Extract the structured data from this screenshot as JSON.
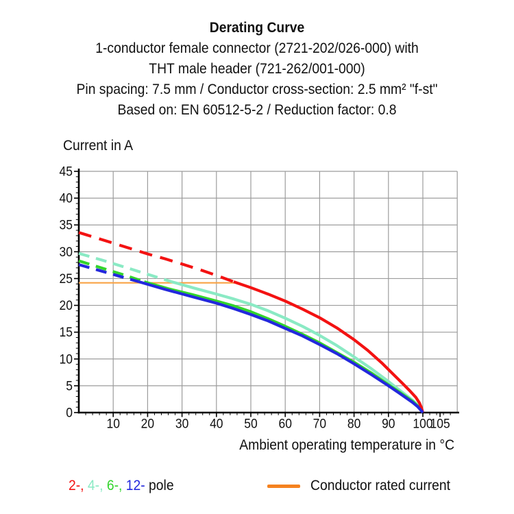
{
  "header": {
    "title": "Derating Curve",
    "lines": [
      "1-conductor female connector (2721-202/026-000) with",
      "THT male header (721-262/001-000)",
      "Pin spacing: 7.5 mm / Conductor cross-section: 2.5 mm² \"f-st\"",
      "Based on: EN 60512-5-2 / Reduction factor: 0.8"
    ]
  },
  "chart_data": {
    "type": "line",
    "title": "Derating Curve",
    "xlabel": "Ambient operating temperature in °C",
    "ylabel": "Current in A",
    "xlim": [
      0,
      110
    ],
    "ylim": [
      0,
      45
    ],
    "x_ticks": [
      10,
      20,
      30,
      40,
      50,
      60,
      70,
      80,
      90,
      100,
      105
    ],
    "x_grid": [
      10,
      20,
      30,
      40,
      50,
      60,
      70,
      80,
      90,
      100,
      110
    ],
    "y_ticks": [
      0,
      5,
      10,
      15,
      20,
      25,
      30,
      35,
      40,
      45
    ],
    "x_minor_step": 2,
    "y_minor_step": 1,
    "grid": true,
    "legend_position": "bottom",
    "grid_color": "#9c9c9c",
    "axis_color": "#000000",
    "rated_current": 24,
    "series": [
      {
        "name": "2-pole",
        "color": "#f31212",
        "width": 4.2,
        "dash": "19 12",
        "dashed": [
          [
            0,
            33.6
          ],
          [
            5,
            32.6
          ],
          [
            10,
            31.6
          ],
          [
            15,
            30.6
          ],
          [
            20,
            29.6
          ],
          [
            25,
            28.7
          ],
          [
            30,
            27.7
          ],
          [
            35,
            26.7
          ],
          [
            40,
            25.6
          ],
          [
            45,
            24.4
          ]
        ],
        "solid": [
          [
            45,
            24.4
          ],
          [
            50,
            23.3
          ],
          [
            55,
            22.1
          ],
          [
            60,
            20.8
          ],
          [
            65,
            19.3
          ],
          [
            70,
            17.7
          ],
          [
            75,
            15.8
          ],
          [
            80,
            13.6
          ],
          [
            84,
            11.6
          ],
          [
            88,
            9.3
          ],
          [
            91,
            7.4
          ],
          [
            94,
            5.5
          ],
          [
            96,
            4.2
          ],
          [
            98,
            2.8
          ],
          [
            99,
            1.8
          ],
          [
            99.6,
            0.9
          ],
          [
            100,
            0
          ]
        ]
      },
      {
        "name": "4-pole",
        "color": "#8aeac4",
        "width": 4.2,
        "dash": "16 10",
        "dashed": [
          [
            0,
            29.7
          ],
          [
            7,
            28.4
          ],
          [
            14,
            27.0
          ],
          [
            21,
            25.6
          ],
          [
            27,
            24.4
          ]
        ],
        "solid": [
          [
            27,
            24.4
          ],
          [
            33,
            23.3
          ],
          [
            40,
            22.1
          ],
          [
            45,
            21.2
          ],
          [
            50,
            20.2
          ],
          [
            55,
            19.0
          ],
          [
            60,
            17.6
          ],
          [
            65,
            16.1
          ],
          [
            70,
            14.4
          ],
          [
            75,
            12.5
          ],
          [
            80,
            10.4
          ],
          [
            85,
            8.2
          ],
          [
            90,
            5.8
          ],
          [
            93,
            4.3
          ],
          [
            95,
            3.3
          ],
          [
            97,
            2.3
          ],
          [
            98.5,
            1.4
          ],
          [
            99.5,
            0.6
          ],
          [
            100,
            0
          ]
        ]
      },
      {
        "name": "6-pole",
        "color": "#33d42d",
        "width": 4.2,
        "dash": "16 10",
        "dashed": [
          [
            0,
            28.3
          ],
          [
            6,
            27.1
          ],
          [
            13,
            25.7
          ],
          [
            19,
            24.4
          ]
        ],
        "solid": [
          [
            19,
            24.4
          ],
          [
            26,
            23.1
          ],
          [
            33,
            22.0
          ],
          [
            40,
            20.8
          ],
          [
            45,
            19.9
          ],
          [
            50,
            18.8
          ],
          [
            55,
            17.5
          ],
          [
            60,
            16.1
          ],
          [
            65,
            14.6
          ],
          [
            70,
            13.0
          ],
          [
            75,
            11.2
          ],
          [
            80,
            9.4
          ],
          [
            85,
            7.4
          ],
          [
            90,
            5.2
          ],
          [
            93,
            3.9
          ],
          [
            95,
            3.0
          ],
          [
            97,
            2.1
          ],
          [
            98.5,
            1.2
          ],
          [
            99.5,
            0.5
          ],
          [
            100,
            0
          ]
        ]
      },
      {
        "name": "12-pole",
        "color": "#2328dd",
        "width": 4.2,
        "dash": "16 10",
        "dashed": [
          [
            0,
            27.6
          ],
          [
            6,
            26.5
          ],
          [
            12,
            25.4
          ],
          [
            17.5,
            24.4
          ]
        ],
        "solid": [
          [
            17.5,
            24.4
          ],
          [
            25,
            23.0
          ],
          [
            33,
            21.6
          ],
          [
            40,
            20.4
          ],
          [
            45,
            19.4
          ],
          [
            50,
            18.3
          ],
          [
            55,
            17.1
          ],
          [
            60,
            15.7
          ],
          [
            65,
            14.3
          ],
          [
            70,
            12.7
          ],
          [
            75,
            11.0
          ],
          [
            80,
            9.1
          ],
          [
            85,
            7.1
          ],
          [
            90,
            5.0
          ],
          [
            93,
            3.7
          ],
          [
            95,
            2.8
          ],
          [
            97,
            1.9
          ],
          [
            98.5,
            1.1
          ],
          [
            99.5,
            0.4
          ],
          [
            100,
            0
          ]
        ]
      },
      {
        "name": "Conductor rated current",
        "color": "#f9a345",
        "width": 2.2,
        "solid": [
          [
            0,
            24.2
          ],
          [
            45.5,
            24.2
          ]
        ]
      }
    ]
  },
  "legend": {
    "poles": [
      {
        "label": "2-,",
        "color": "#f31212"
      },
      {
        "label": "4-,",
        "color": "#8aeac4"
      },
      {
        "label": "6-,",
        "color": "#33d42d"
      },
      {
        "label": "12-",
        "color": "#2328dd"
      }
    ],
    "suffix": " pole",
    "rated": {
      "label": "Conductor rated current",
      "color": "#f5821f"
    }
  }
}
